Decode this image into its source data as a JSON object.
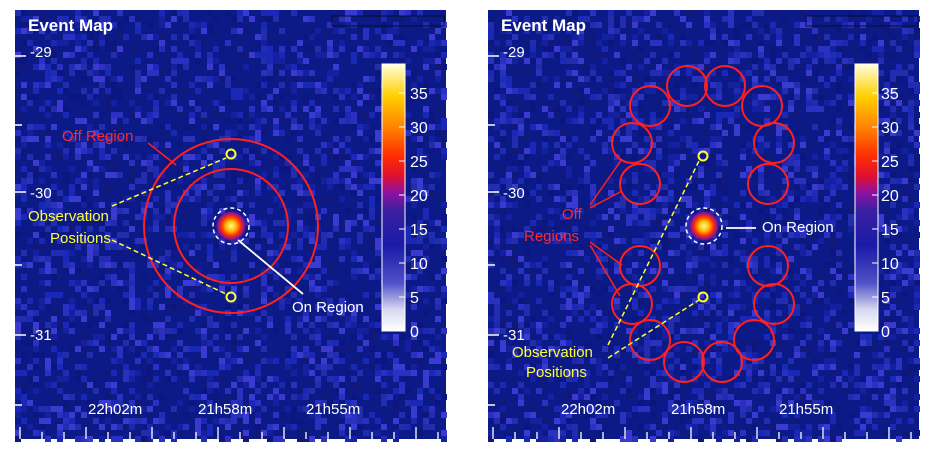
{
  "colors": {
    "background": "#0b1a86",
    "off_region": "#ff2020",
    "observation": "#ffff33",
    "source_ring": "#ffffff"
  },
  "panels": [
    {
      "title": "Event Map",
      "dec_labels": [
        "-29",
        "-30",
        "-31"
      ],
      "ra_labels": [
        "22h02m",
        "21h58m",
        "21h55m"
      ],
      "colorbar_ticks": [
        "35",
        "30",
        "25",
        "20",
        "15",
        "10",
        "5",
        "0"
      ],
      "off_label": "Off Region",
      "obs_label_lines": [
        "Observation",
        "Positions"
      ],
      "on_label": "On Region"
    },
    {
      "title": "Event Map",
      "dec_labels": [
        "-29",
        "-30",
        "-31"
      ],
      "ra_labels": [
        "22h02m",
        "21h58m",
        "21h55m"
      ],
      "colorbar_ticks": [
        "35",
        "30",
        "25",
        "20",
        "15",
        "10",
        "5",
        "0"
      ],
      "off_label_lines": [
        "Off",
        "Regions"
      ],
      "obs_label_lines": [
        "Observation",
        "Positions"
      ],
      "on_label": "On Region"
    }
  ]
}
